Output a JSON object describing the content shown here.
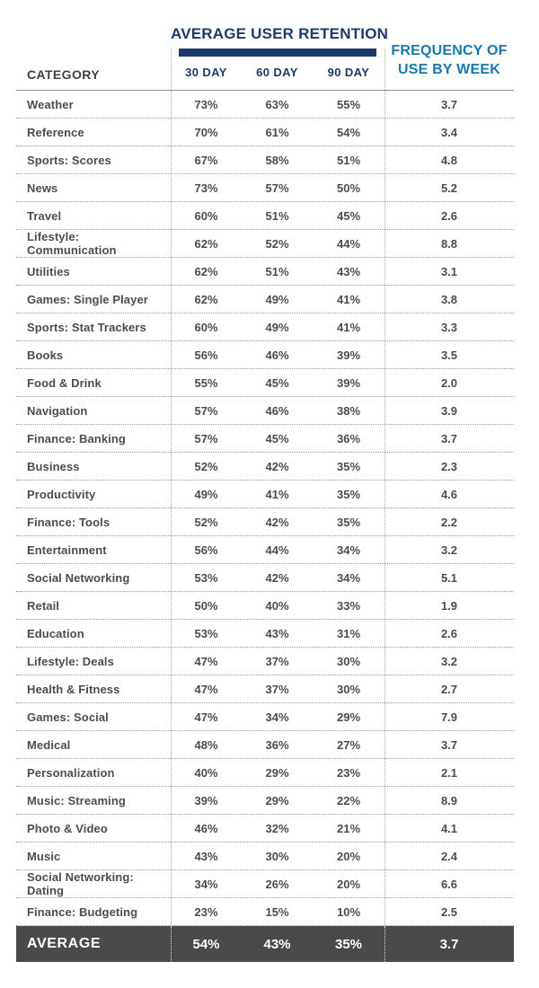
{
  "colors": {
    "navy": "#1e3a6c",
    "blue": "#1878b0",
    "dark_row_bg": "#4a4a4a",
    "body_text": "#4d4d4f"
  },
  "header": {
    "category_label": "CATEGORY",
    "retention_title": "AVERAGE USER RETENTION",
    "frequency_title": "FREQUENCY OF USE BY WEEK",
    "day_columns": [
      "30 DAY",
      "60 DAY",
      "90 DAY"
    ]
  },
  "chart_data": {
    "type": "table",
    "title": "AVERAGE USER RETENTION",
    "columns": [
      "CATEGORY",
      "30 DAY",
      "60 DAY",
      "90 DAY",
      "FREQUENCY OF USE BY WEEK"
    ],
    "rows": [
      [
        "Weather",
        "73%",
        "63%",
        "55%",
        "3.7"
      ],
      [
        "Reference",
        "70%",
        "61%",
        "54%",
        "3.4"
      ],
      [
        "Sports: Scores",
        "67%",
        "58%",
        "51%",
        "4.8"
      ],
      [
        "News",
        "73%",
        "57%",
        "50%",
        "5.2"
      ],
      [
        "Travel",
        "60%",
        "51%",
        "45%",
        "2.6"
      ],
      [
        "Lifestyle: Communication",
        "62%",
        "52%",
        "44%",
        "8.8"
      ],
      [
        "Utilities",
        "62%",
        "51%",
        "43%",
        "3.1"
      ],
      [
        "Games: Single Player",
        "62%",
        "49%",
        "41%",
        "3.8"
      ],
      [
        "Sports: Stat Trackers",
        "60%",
        "49%",
        "41%",
        "3.3"
      ],
      [
        "Books",
        "56%",
        "46%",
        "39%",
        "3.5"
      ],
      [
        "Food & Drink",
        "55%",
        "45%",
        "39%",
        "2.0"
      ],
      [
        "Navigation",
        "57%",
        "46%",
        "38%",
        "3.9"
      ],
      [
        "Finance: Banking",
        "57%",
        "45%",
        "36%",
        "3.7"
      ],
      [
        "Business",
        "52%",
        "42%",
        "35%",
        "2.3"
      ],
      [
        "Productivity",
        "49%",
        "41%",
        "35%",
        "4.6"
      ],
      [
        "Finance: Tools",
        "52%",
        "42%",
        "35%",
        "2.2"
      ],
      [
        "Entertainment",
        "56%",
        "44%",
        "34%",
        "3.2"
      ],
      [
        "Social Networking",
        "53%",
        "42%",
        "34%",
        "5.1"
      ],
      [
        "Retail",
        "50%",
        "40%",
        "33%",
        "1.9"
      ],
      [
        "Education",
        "53%",
        "43%",
        "31%",
        "2.6"
      ],
      [
        "Lifestyle: Deals",
        "47%",
        "37%",
        "30%",
        "3.2"
      ],
      [
        "Health & Fitness",
        "47%",
        "37%",
        "30%",
        "2.7"
      ],
      [
        "Games: Social",
        "47%",
        "34%",
        "29%",
        "7.9"
      ],
      [
        "Medical",
        "48%",
        "36%",
        "27%",
        "3.7"
      ],
      [
        "Personalization",
        "40%",
        "29%",
        "23%",
        "2.1"
      ],
      [
        "Music: Streaming",
        "39%",
        "29%",
        "22%",
        "8.9"
      ],
      [
        "Photo & Video",
        "46%",
        "32%",
        "21%",
        "4.1"
      ],
      [
        "Music",
        "43%",
        "30%",
        "20%",
        "2.4"
      ],
      [
        "Social Networking: Dating",
        "34%",
        "26%",
        "20%",
        "6.6"
      ],
      [
        "Finance: Budgeting",
        "23%",
        "15%",
        "10%",
        "2.5"
      ]
    ],
    "average": [
      "AVERAGE",
      "54%",
      "43%",
      "35%",
      "3.7"
    ]
  }
}
